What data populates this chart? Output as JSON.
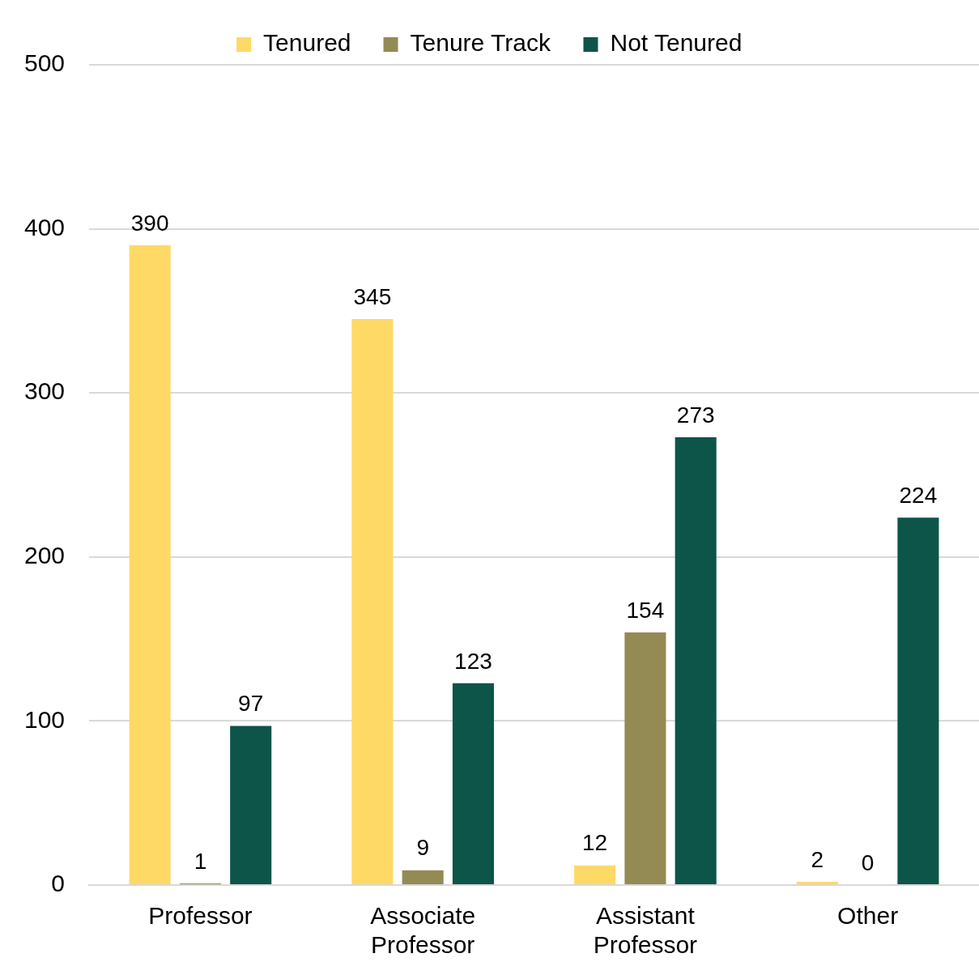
{
  "chart_data": {
    "type": "bar",
    "categories": [
      "Professor",
      "Associate Professor",
      "Assistant Professor",
      "Other"
    ],
    "series": [
      {
        "name": "Tenured",
        "color": "#ffd966",
        "values": [
          390,
          345,
          12,
          2
        ]
      },
      {
        "name": "Tenure Track",
        "color": "#948a54",
        "values": [
          1,
          9,
          154,
          0
        ]
      },
      {
        "name": "Not Tenured",
        "color": "#0d5449",
        "values": [
          97,
          123,
          273,
          224
        ]
      }
    ],
    "ylim": [
      0,
      500
    ],
    "yticks": [
      0,
      100,
      200,
      300,
      400,
      500
    ],
    "grid": "y",
    "legend": "top",
    "data_labels": true
  }
}
